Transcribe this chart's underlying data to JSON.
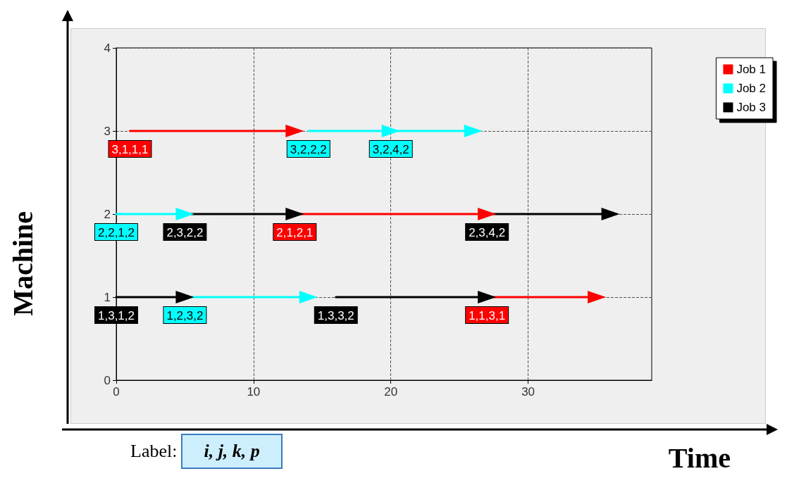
{
  "chart_data": {
    "type": "line",
    "xlabel": "Time",
    "ylabel": "Machine",
    "xlim": [
      0,
      39
    ],
    "xticks": [
      0,
      10,
      20,
      30
    ],
    "ylim": [
      0,
      4
    ],
    "yticks": [
      0,
      1,
      2,
      3,
      4
    ],
    "grid": true,
    "legend": "right",
    "marker": "triangle",
    "annotations": [
      "Label: i, j, k, p"
    ],
    "series": [
      {
        "name": "Job 1",
        "color": "#ff0000",
        "x": [
          1,
          13,
          null,
          13,
          27,
          null,
          27,
          35
        ],
        "values": [
          3,
          3,
          null,
          2,
          2,
          null,
          1,
          1
        ],
        "value_labels": [
          "3,1,1,1",
          null,
          null,
          "2,1,2,1",
          null,
          null,
          "1,1,3,1",
          null
        ]
      },
      {
        "name": "Job 2",
        "color": "#00ffff",
        "x": [
          0,
          5,
          null,
          5,
          14,
          null,
          14,
          20,
          null,
          20,
          26
        ],
        "values": [
          2,
          2,
          null,
          1,
          1,
          null,
          3,
          3,
          null,
          3,
          3
        ],
        "value_labels": [
          "2,2,1,2",
          null,
          null,
          "1,2,3,2",
          null,
          null,
          "3,2,2,2",
          null,
          null,
          "3,2,4,2",
          null
        ]
      },
      {
        "name": "Job 3",
        "color": "#000000",
        "x": [
          0,
          5,
          null,
          5,
          13,
          null,
          16,
          27,
          null,
          27,
          36
        ],
        "values": [
          1,
          1,
          null,
          2,
          2,
          null,
          1,
          1,
          null,
          2,
          2
        ],
        "value_labels": [
          "1,3,1,2",
          null,
          null,
          "2,3,2,2",
          null,
          null,
          "1,3,3,2",
          null,
          null,
          "2,3,4,2",
          null
        ]
      }
    ]
  }
}
